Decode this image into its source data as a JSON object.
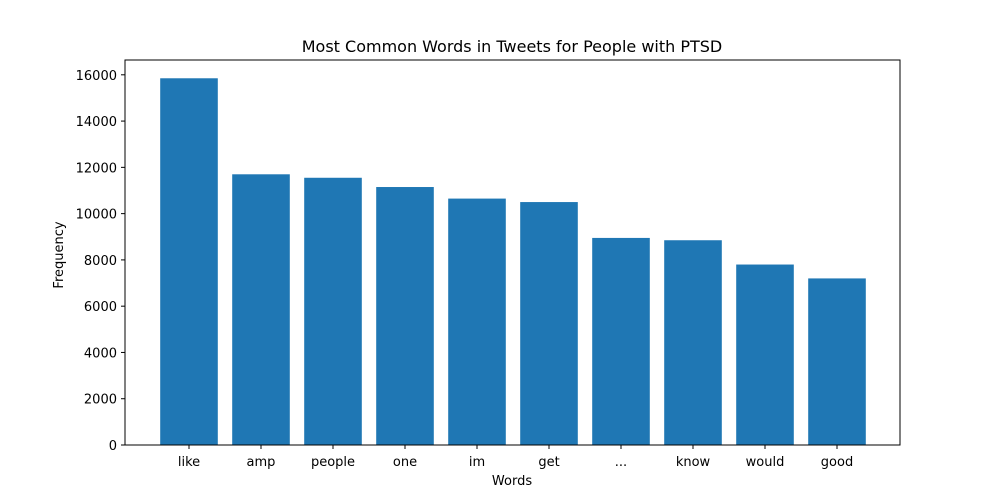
{
  "chart_data": {
    "type": "bar",
    "title": "Most Common Words in Tweets for People with PTSD",
    "xlabel": "Words",
    "ylabel": "Frequency",
    "categories": [
      "like",
      "amp",
      "people",
      "one",
      "im",
      "get",
      "...",
      "know",
      "would",
      "good"
    ],
    "values": [
      15850,
      11700,
      11550,
      11150,
      10650,
      10500,
      8950,
      8850,
      7800,
      7200
    ],
    "ylim": [
      0,
      16640
    ],
    "yticks": [
      0,
      2000,
      4000,
      6000,
      8000,
      10000,
      12000,
      14000,
      16000
    ],
    "grid": false,
    "legend": "none",
    "bar_color": "#1f77b4"
  }
}
